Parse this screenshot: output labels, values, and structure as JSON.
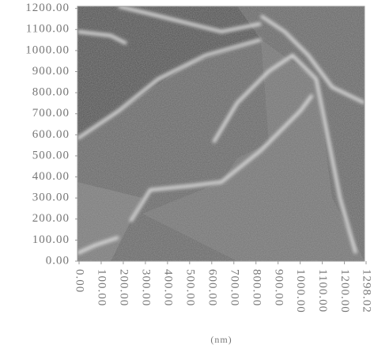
{
  "chart_data": {
    "type": "image",
    "xlabel": "(nm)",
    "xlim": [
      0,
      1298.02
    ],
    "ylim": [
      0,
      1210
    ],
    "xticks": [
      {
        "value": 0,
        "label": "0.00"
      },
      {
        "value": 100,
        "label": "100.00"
      },
      {
        "value": 200,
        "label": "200.00"
      },
      {
        "value": 300,
        "label": "300.00"
      },
      {
        "value": 400,
        "label": "400.00"
      },
      {
        "value": 500,
        "label": "500.00"
      },
      {
        "value": 600,
        "label": "600.00"
      },
      {
        "value": 700,
        "label": "700.00"
      },
      {
        "value": 800,
        "label": "800.00"
      },
      {
        "value": 900,
        "label": "900.00"
      },
      {
        "value": 1000,
        "label": "1000.00"
      },
      {
        "value": 1100,
        "label": "1100.00"
      },
      {
        "value": 1200,
        "label": "1200.00"
      },
      {
        "value": 1298.02,
        "label": "1298.02"
      }
    ],
    "yticks": [
      {
        "value": 0,
        "label": "0.00"
      },
      {
        "value": 100,
        "label": "100.00"
      },
      {
        "value": 200,
        "label": "200.00"
      },
      {
        "value": 300,
        "label": "300.00"
      },
      {
        "value": 400,
        "label": "400.00"
      },
      {
        "value": 500,
        "label": "500.00"
      },
      {
        "value": 600,
        "label": "600.00"
      },
      {
        "value": 700,
        "label": "700.00"
      },
      {
        "value": 800,
        "label": "800.00"
      },
      {
        "value": 900,
        "label": "900.00"
      },
      {
        "value": 1000,
        "label": "1000.00"
      },
      {
        "value": 1100,
        "label": "1100.00"
      },
      {
        "value": 1200,
        "label": "1200.00"
      }
    ]
  }
}
